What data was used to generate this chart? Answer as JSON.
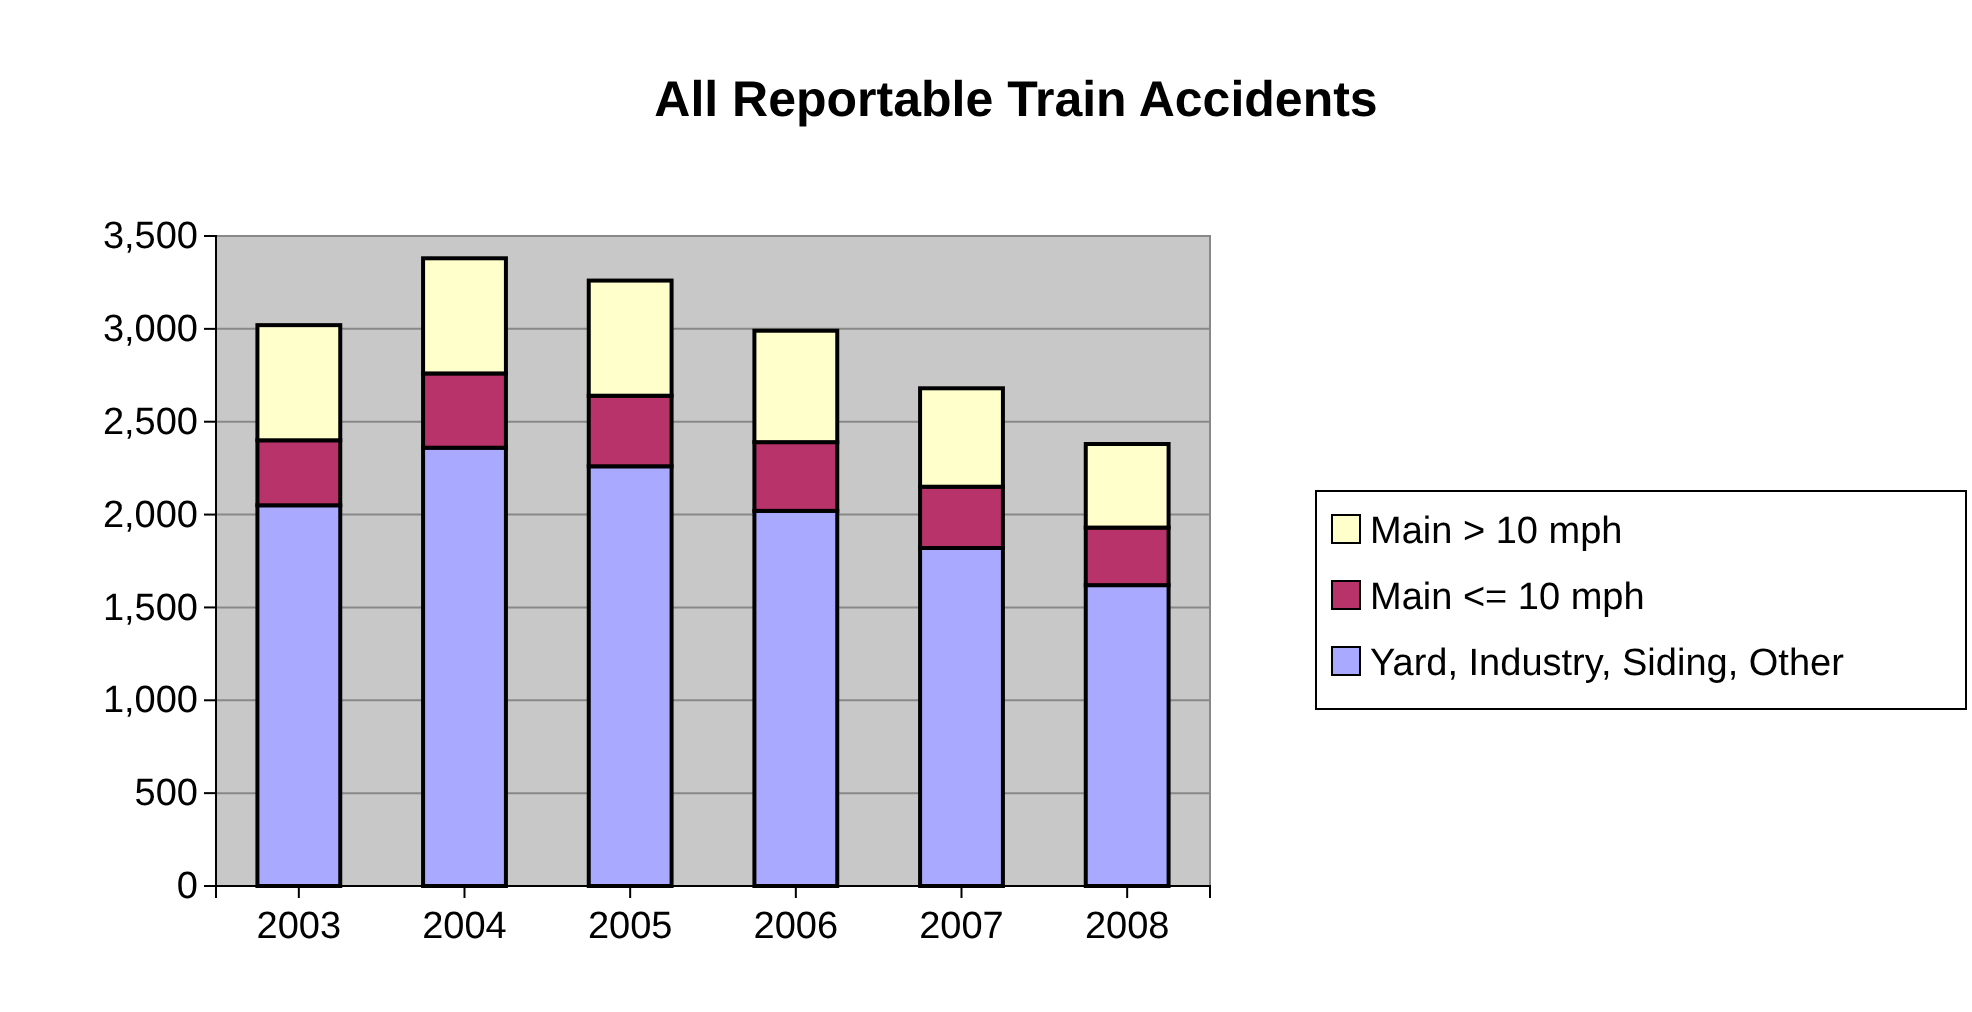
{
  "chart_data": {
    "type": "bar",
    "title": "All Reportable Train Accidents",
    "categories": [
      "2003",
      "2004",
      "2005",
      "2006",
      "2007",
      "2008"
    ],
    "stacked": true,
    "series": [
      {
        "name": "Yard, Industry, Siding, Other",
        "color": "#a9a9ff",
        "values": [
          2050,
          2360,
          2260,
          2020,
          1820,
          1620
        ]
      },
      {
        "name": "Main <= 10 mph",
        "color": "#b8336a",
        "values": [
          350,
          400,
          380,
          370,
          330,
          310
        ]
      },
      {
        "name": "Main > 10 mph",
        "color": "#ffffcc",
        "values": [
          620,
          620,
          620,
          600,
          530,
          450
        ]
      }
    ],
    "ylim": [
      0,
      3500
    ],
    "yticks": [
      {
        "value": 0,
        "label": "0"
      },
      {
        "value": 500,
        "label": "500"
      },
      {
        "value": 1000,
        "label": "1,000"
      },
      {
        "value": 1500,
        "label": "1,500"
      },
      {
        "value": 2000,
        "label": "2,000"
      },
      {
        "value": 2500,
        "label": "2,500"
      },
      {
        "value": 3000,
        "label": "3,000"
      },
      {
        "value": 3500,
        "label": "3,500"
      }
    ],
    "grid": "y",
    "legend": "right"
  }
}
